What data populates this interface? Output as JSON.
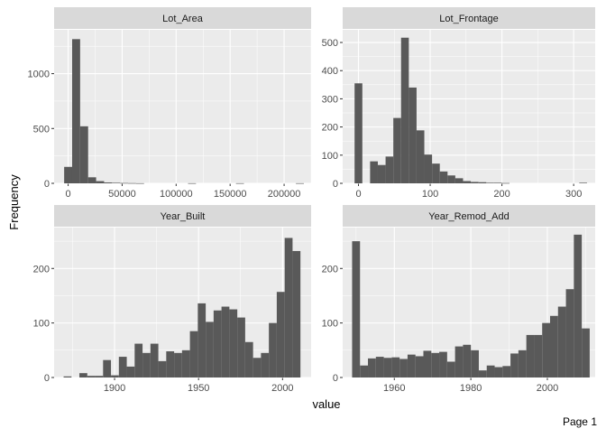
{
  "figure": {
    "ylabel": "Frequency",
    "xlabel": "value",
    "footer": "Page 1",
    "panel_background": "#ebebeb",
    "strip_background": "#d9d9d9",
    "grid_major": "#ffffff",
    "bar_color": "#595959",
    "text_color": "#4d4d4d",
    "title_color": "#1a1a1a"
  },
  "chart_data": [
    {
      "type": "bar",
      "title": "Lot_Area",
      "xlim": [
        -13000,
        225000
      ],
      "ylim": [
        0,
        1400
      ],
      "x_ticks": [
        0,
        50000,
        100000,
        150000,
        200000
      ],
      "x_tick_labels": [
        "0",
        "50000",
        "100000",
        "150000",
        "200000"
      ],
      "y_ticks": [
        0,
        500,
        1000
      ],
      "y_tick_labels": [
        "0",
        "500",
        "1000"
      ],
      "bin_width": 7400,
      "bins": [
        {
          "x": 0,
          "count": 150
        },
        {
          "x": 7400,
          "count": 1315
        },
        {
          "x": 14800,
          "count": 520
        },
        {
          "x": 22200,
          "count": 55
        },
        {
          "x": 29600,
          "count": 20
        },
        {
          "x": 37000,
          "count": 8
        },
        {
          "x": 44400,
          "count": 5
        },
        {
          "x": 51800,
          "count": 3
        },
        {
          "x": 59200,
          "count": 2
        },
        {
          "x": 66600,
          "count": 1
        },
        {
          "x": 114700,
          "count": 1
        },
        {
          "x": 159100,
          "count": 1
        },
        {
          "x": 214600,
          "count": 1
        }
      ]
    },
    {
      "type": "bar",
      "title": "Lot_Frontage",
      "xlim": [
        -22,
        330
      ],
      "ylim": [
        0,
        545
      ],
      "x_ticks": [
        0,
        100,
        200,
        300
      ],
      "x_tick_labels": [
        "0",
        "100",
        "200",
        "300"
      ],
      "y_ticks": [
        0,
        100,
        200,
        300,
        400,
        500
      ],
      "y_tick_labels": [
        "0",
        "100",
        "200",
        "300",
        "400",
        "500"
      ],
      "bin_width": 10.8,
      "bins": [
        {
          "x": 0,
          "count": 355
        },
        {
          "x": 21.6,
          "count": 78
        },
        {
          "x": 32.4,
          "count": 65
        },
        {
          "x": 43.2,
          "count": 95
        },
        {
          "x": 54.0,
          "count": 232
        },
        {
          "x": 64.8,
          "count": 517
        },
        {
          "x": 75.6,
          "count": 340
        },
        {
          "x": 86.4,
          "count": 188
        },
        {
          "x": 97.2,
          "count": 102
        },
        {
          "x": 108.0,
          "count": 70
        },
        {
          "x": 118.8,
          "count": 42
        },
        {
          "x": 129.6,
          "count": 28
        },
        {
          "x": 140.4,
          "count": 18
        },
        {
          "x": 151.2,
          "count": 8
        },
        {
          "x": 162.0,
          "count": 5
        },
        {
          "x": 172.8,
          "count": 4
        },
        {
          "x": 183.6,
          "count": 2
        },
        {
          "x": 194.4,
          "count": 2
        },
        {
          "x": 205.2,
          "count": 1
        },
        {
          "x": 313.2,
          "count": 2
        }
      ]
    },
    {
      "type": "bar",
      "title": "Year_Built",
      "xlim": [
        1864,
        2017
      ],
      "ylim": [
        0,
        275
      ],
      "x_ticks": [
        1900,
        1950,
        2000
      ],
      "x_tick_labels": [
        "1900",
        "1950",
        "2000"
      ],
      "y_ticks": [
        0,
        100,
        200
      ],
      "y_tick_labels": [
        "0",
        "100",
        "200"
      ],
      "bin_width": 4.7,
      "bins": [
        {
          "x": 1872,
          "count": 2
        },
        {
          "x": 1881.4,
          "count": 8
        },
        {
          "x": 1886.1,
          "count": 3
        },
        {
          "x": 1890.8,
          "count": 3
        },
        {
          "x": 1895.5,
          "count": 32
        },
        {
          "x": 1900.2,
          "count": 4
        },
        {
          "x": 1904.9,
          "count": 38
        },
        {
          "x": 1909.6,
          "count": 20
        },
        {
          "x": 1914.3,
          "count": 62
        },
        {
          "x": 1919.0,
          "count": 45
        },
        {
          "x": 1923.7,
          "count": 62
        },
        {
          "x": 1928.4,
          "count": 30
        },
        {
          "x": 1933.1,
          "count": 48
        },
        {
          "x": 1937.8,
          "count": 45
        },
        {
          "x": 1942.5,
          "count": 50
        },
        {
          "x": 1947.2,
          "count": 85
        },
        {
          "x": 1951.9,
          "count": 136
        },
        {
          "x": 1956.6,
          "count": 102
        },
        {
          "x": 1961.3,
          "count": 123
        },
        {
          "x": 1966.0,
          "count": 130
        },
        {
          "x": 1970.7,
          "count": 125
        },
        {
          "x": 1975.4,
          "count": 110
        },
        {
          "x": 1980.1,
          "count": 65
        },
        {
          "x": 1984.8,
          "count": 36
        },
        {
          "x": 1989.5,
          "count": 45
        },
        {
          "x": 1994.2,
          "count": 100
        },
        {
          "x": 1998.9,
          "count": 157
        },
        {
          "x": 2003.6,
          "count": 256
        },
        {
          "x": 2008.3,
          "count": 232
        }
      ]
    },
    {
      "type": "bar",
      "title": "Year_Remod_Add",
      "xlim": [
        1946.5,
        2012.5
      ],
      "ylim": [
        0,
        275
      ],
      "x_ticks": [
        1960,
        1980,
        2000
      ],
      "x_tick_labels": [
        "1960",
        "1980",
        "2000"
      ],
      "y_ticks": [
        0,
        100,
        200
      ],
      "y_tick_labels": [
        "0",
        "100",
        "200"
      ],
      "bin_width": 2.07,
      "bins": [
        {
          "x": 1950.0,
          "count": 250
        },
        {
          "x": 1952.07,
          "count": 22
        },
        {
          "x": 1954.14,
          "count": 35
        },
        {
          "x": 1956.21,
          "count": 38
        },
        {
          "x": 1958.28,
          "count": 36
        },
        {
          "x": 1960.35,
          "count": 37
        },
        {
          "x": 1962.42,
          "count": 34
        },
        {
          "x": 1964.49,
          "count": 42
        },
        {
          "x": 1966.56,
          "count": 39
        },
        {
          "x": 1968.63,
          "count": 49
        },
        {
          "x": 1970.7,
          "count": 45
        },
        {
          "x": 1972.77,
          "count": 47
        },
        {
          "x": 1974.84,
          "count": 29
        },
        {
          "x": 1976.91,
          "count": 57
        },
        {
          "x": 1978.98,
          "count": 60
        },
        {
          "x": 1981.05,
          "count": 50
        },
        {
          "x": 1983.12,
          "count": 13
        },
        {
          "x": 1985.19,
          "count": 22
        },
        {
          "x": 1987.26,
          "count": 19
        },
        {
          "x": 1989.33,
          "count": 21
        },
        {
          "x": 1991.4,
          "count": 44
        },
        {
          "x": 1993.47,
          "count": 50
        },
        {
          "x": 1995.54,
          "count": 78
        },
        {
          "x": 1997.61,
          "count": 78
        },
        {
          "x": 1999.68,
          "count": 100
        },
        {
          "x": 2001.75,
          "count": 113
        },
        {
          "x": 2003.82,
          "count": 130
        },
        {
          "x": 2005.89,
          "count": 162
        },
        {
          "x": 2007.96,
          "count": 262
        },
        {
          "x": 2010.03,
          "count": 90
        }
      ]
    }
  ]
}
